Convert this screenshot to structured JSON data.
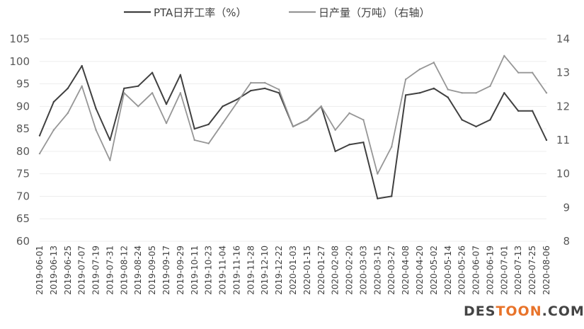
{
  "chart_data": {
    "type": "line",
    "title": "",
    "xlabel": "",
    "ylabel": "",
    "x": [
      "2019-06-01",
      "2019-06-13",
      "2019-06-25",
      "2019-07-07",
      "2019-07-19",
      "2019-07-31",
      "2019-08-12",
      "2019-08-24",
      "2019-09-05",
      "2019-09-17",
      "2019-09-29",
      "2019-10-11",
      "2019-10-23",
      "2019-11-04",
      "2019-11-16",
      "2019-11-28",
      "2019-12-10",
      "2019-12-22",
      "2020-01-03",
      "2020-01-15",
      "2020-01-27",
      "2020-02-08",
      "2020-02-20",
      "2020-03-03",
      "2020-03-15",
      "2020-03-27",
      "2020-04-08",
      "2020-04-20",
      "2020-05-02",
      "2020-05-14",
      "2020-05-26",
      "2020-06-07",
      "2020-06-19",
      "2020-07-01",
      "2020-07-13",
      "2020-07-25",
      "2020-08-06"
    ],
    "ylim_left": [
      60,
      105
    ],
    "yticks_left": [
      60,
      65,
      70,
      75,
      80,
      85,
      90,
      95,
      100,
      105
    ],
    "ylim_right": [
      8,
      14
    ],
    "yticks_right": [
      8,
      9,
      10,
      11,
      12,
      13,
      14
    ],
    "grid": "horizontal",
    "legend": "top-center",
    "series": [
      {
        "name": "PTA日开工率（%）",
        "axis": "left",
        "color": "#404040",
        "values": [
          83.5,
          91.0,
          94.0,
          99.0,
          89.5,
          82.5,
          94.0,
          94.5,
          97.5,
          90.5,
          97.0,
          85.0,
          86.0,
          90.0,
          91.5,
          93.5,
          94.0,
          93.0,
          85.5,
          87.0,
          90.0,
          80.0,
          81.5,
          82.0,
          69.5,
          70.0,
          92.5,
          93.0,
          94.0,
          92.0,
          87.0,
          85.5,
          87.0,
          93.0,
          89.0,
          89.0,
          82.5
        ]
      },
      {
        "name": "日产量（万吨）（右轴）",
        "axis": "right",
        "color": "#969696",
        "values": [
          10.6,
          11.3,
          11.8,
          12.6,
          11.3,
          10.4,
          12.4,
          12.0,
          12.4,
          11.5,
          12.4,
          11.0,
          10.9,
          11.5,
          12.1,
          12.7,
          12.7,
          12.5,
          11.4,
          11.6,
          12.0,
          11.3,
          11.8,
          11.6,
          10.0,
          10.8,
          12.8,
          13.1,
          13.3,
          12.5,
          12.4,
          12.4,
          12.6,
          13.5,
          13.0,
          13.0,
          12.4
        ]
      }
    ]
  },
  "watermark": {
    "part1": "DES",
    "part2": "TOON",
    "part3": ".COM",
    "color1": "#444444",
    "color2": "#e8732a"
  }
}
